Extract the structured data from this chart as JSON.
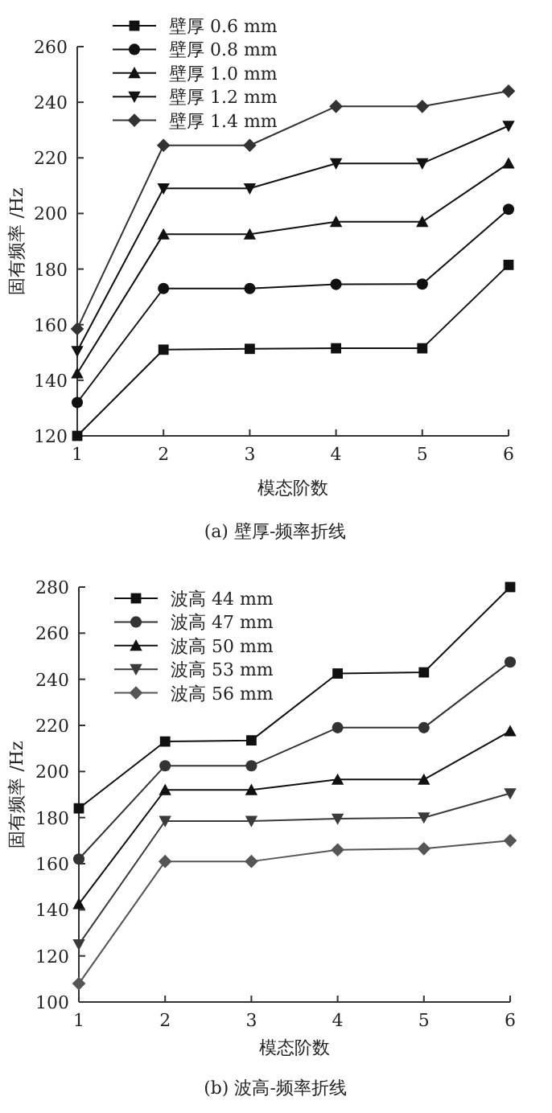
{
  "chart_data": [
    {
      "type": "line",
      "xlabel": "模态阶数",
      "ylabel": "固有频率 /Hz",
      "annotations": [
        "(a) 壁厚-频率折线"
      ],
      "x": [
        1,
        2,
        3,
        4,
        5,
        6
      ],
      "xlim": [
        1,
        6
      ],
      "xticks": [
        1,
        2,
        3,
        4,
        5,
        6
      ],
      "ylim": [
        120,
        260
      ],
      "yticks": [
        120,
        140,
        160,
        180,
        200,
        220,
        240,
        260
      ],
      "grid": false,
      "legend": "top left",
      "line_style": "solid",
      "series": [
        {
          "name": "壁厚 0.6 mm",
          "color": "#111111",
          "marker": "square",
          "values": [
            120,
            151,
            151.3,
            151.5,
            151.5,
            181.5
          ]
        },
        {
          "name": "壁厚 0.8 mm",
          "color": "#111111",
          "marker": "circle",
          "values": [
            132,
            173,
            173,
            174.5,
            174.6,
            201.5
          ]
        },
        {
          "name": "壁厚 1.0 mm",
          "color": "#111111",
          "marker": "triangle",
          "values": [
            142.5,
            192.5,
            192.5,
            197,
            197,
            218
          ]
        },
        {
          "name": "壁厚 1.2 mm",
          "color": "#111111",
          "marker": "triangle-down",
          "values": [
            150.5,
            209,
            209,
            218,
            218,
            231.5
          ]
        },
        {
          "name": "壁厚 1.4 mm",
          "color": "#333333",
          "marker": "diamond",
          "values": [
            158.5,
            224.5,
            224.5,
            238.5,
            238.5,
            244
          ]
        }
      ]
    },
    {
      "type": "line",
      "xlabel": "模态阶数",
      "ylabel": "固有频率 /Hz",
      "annotations": [
        "(b) 波高-频率折线"
      ],
      "x": [
        1,
        2,
        3,
        4,
        5,
        6
      ],
      "xlim": [
        1,
        6
      ],
      "xticks": [
        1,
        2,
        3,
        4,
        5,
        6
      ],
      "ylim": [
        100,
        280
      ],
      "yticks": [
        100,
        120,
        140,
        160,
        180,
        200,
        220,
        240,
        260,
        280
      ],
      "grid": false,
      "legend": "top left",
      "line_style": "solid",
      "series": [
        {
          "name": "波高 44 mm",
          "color": "#111111",
          "marker": "square",
          "values": [
            184,
            213,
            213.5,
            242.5,
            243,
            280
          ]
        },
        {
          "name": "波高 47 mm",
          "color": "#333333",
          "marker": "circle",
          "values": [
            162,
            202.5,
            202.5,
            219,
            219,
            247.5
          ]
        },
        {
          "name": "波高 50 mm",
          "color": "#111111",
          "marker": "triangle",
          "values": [
            142.5,
            192,
            192,
            196.5,
            196.5,
            217.5
          ]
        },
        {
          "name": "波高 53 mm",
          "color": "#3a3a3a",
          "marker": "triangle-down",
          "values": [
            125,
            178.5,
            178.5,
            179.5,
            180,
            190.5
          ]
        },
        {
          "name": "波高 56 mm",
          "color": "#555555",
          "marker": "diamond",
          "values": [
            108,
            161,
            161,
            166,
            166.5,
            170
          ]
        }
      ]
    }
  ]
}
